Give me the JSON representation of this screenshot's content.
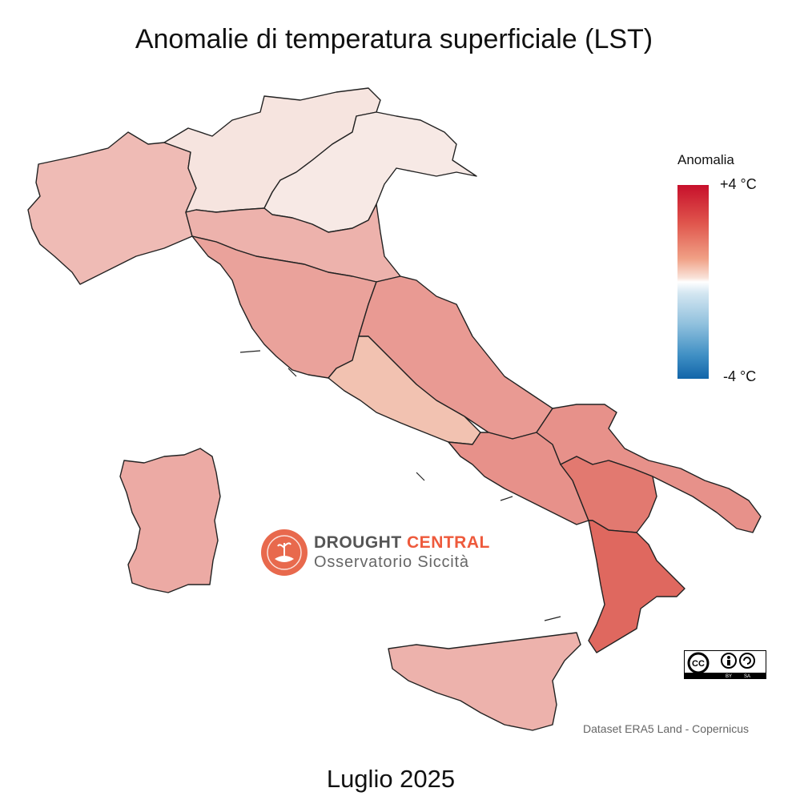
{
  "title": "Anomalie di temperatura superficiale (LST)",
  "subtitle": "Luglio 2025",
  "legend": {
    "title": "Anomalia",
    "max_label": "+4 °C",
    "min_label": "-4 °C",
    "scale_min": -4,
    "scale_max": 4,
    "colors": {
      "max": "#c7102b",
      "mid": "#ffffff",
      "min": "#1265a9"
    }
  },
  "brand": {
    "name_part1": "DROUGHT",
    "name_part2": "CENTRAL",
    "tagline": "Osservatorio Siccità",
    "accent_color": "#ee5a3c"
  },
  "license": {
    "badges": [
      "CC",
      "BY",
      "SA"
    ]
  },
  "source": "Dataset ERA5 Land - Copernicus",
  "regions": [
    {
      "name": "north-west",
      "level": 0.3
    },
    {
      "name": "north-central",
      "level": 0.05
    },
    {
      "name": "north-east",
      "level": 0.02
    },
    {
      "name": "emilia",
      "level": 0.35
    },
    {
      "name": "center",
      "level": 0.45
    },
    {
      "name": "adriatic",
      "level": 0.5
    },
    {
      "name": "campania",
      "level": 0.55
    },
    {
      "name": "puglia",
      "level": 0.55
    },
    {
      "name": "basilicata",
      "level": 0.7
    },
    {
      "name": "calabria",
      "level": 0.8
    },
    {
      "name": "sicilia",
      "level": 0.35
    },
    {
      "name": "sardegna",
      "level": 0.4
    }
  ]
}
